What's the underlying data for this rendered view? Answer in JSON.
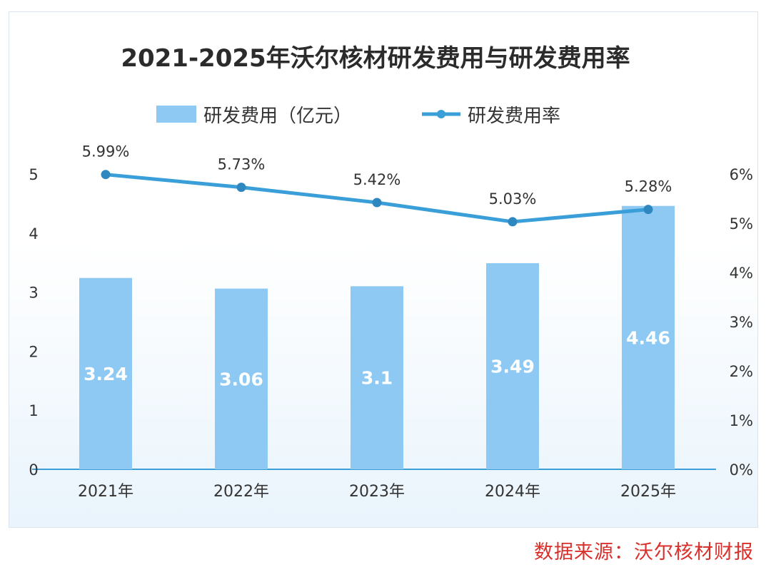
{
  "chart_data": {
    "type": "bar",
    "title": "2021-2025年沃尔核材研发费用与研发费用率",
    "categories": [
      "2021年",
      "2022年",
      "2023年",
      "2024年",
      "2025年"
    ],
    "series": [
      {
        "name": "研发费用（亿元）",
        "type": "bar",
        "axis": "left",
        "values": [
          3.24,
          3.06,
          3.1,
          3.49,
          4.46
        ],
        "labels": [
          "3.24",
          "3.06",
          "3.1",
          "3.49",
          "4.46"
        ],
        "color": "#8ec9f4"
      },
      {
        "name": "研发费用率",
        "type": "line",
        "axis": "right",
        "values": [
          5.99,
          5.73,
          5.42,
          5.03,
          5.28
        ],
        "labels": [
          "5.99%",
          "5.73%",
          "5.42%",
          "5.03%",
          "5.28%"
        ],
        "color": "#3a9fd8"
      }
    ],
    "y_left": {
      "ylim": [
        0,
        5
      ],
      "ticks": [
        "0",
        "1",
        "2",
        "3",
        "4",
        "5"
      ]
    },
    "y_right": {
      "ylim": [
        0,
        6
      ],
      "ticks": [
        "0%",
        "1%",
        "2%",
        "3%",
        "4%",
        "5%",
        "6%"
      ]
    },
    "legend": "top-center",
    "grid": false
  },
  "source_note": "数据来源：沃尔核材财报"
}
